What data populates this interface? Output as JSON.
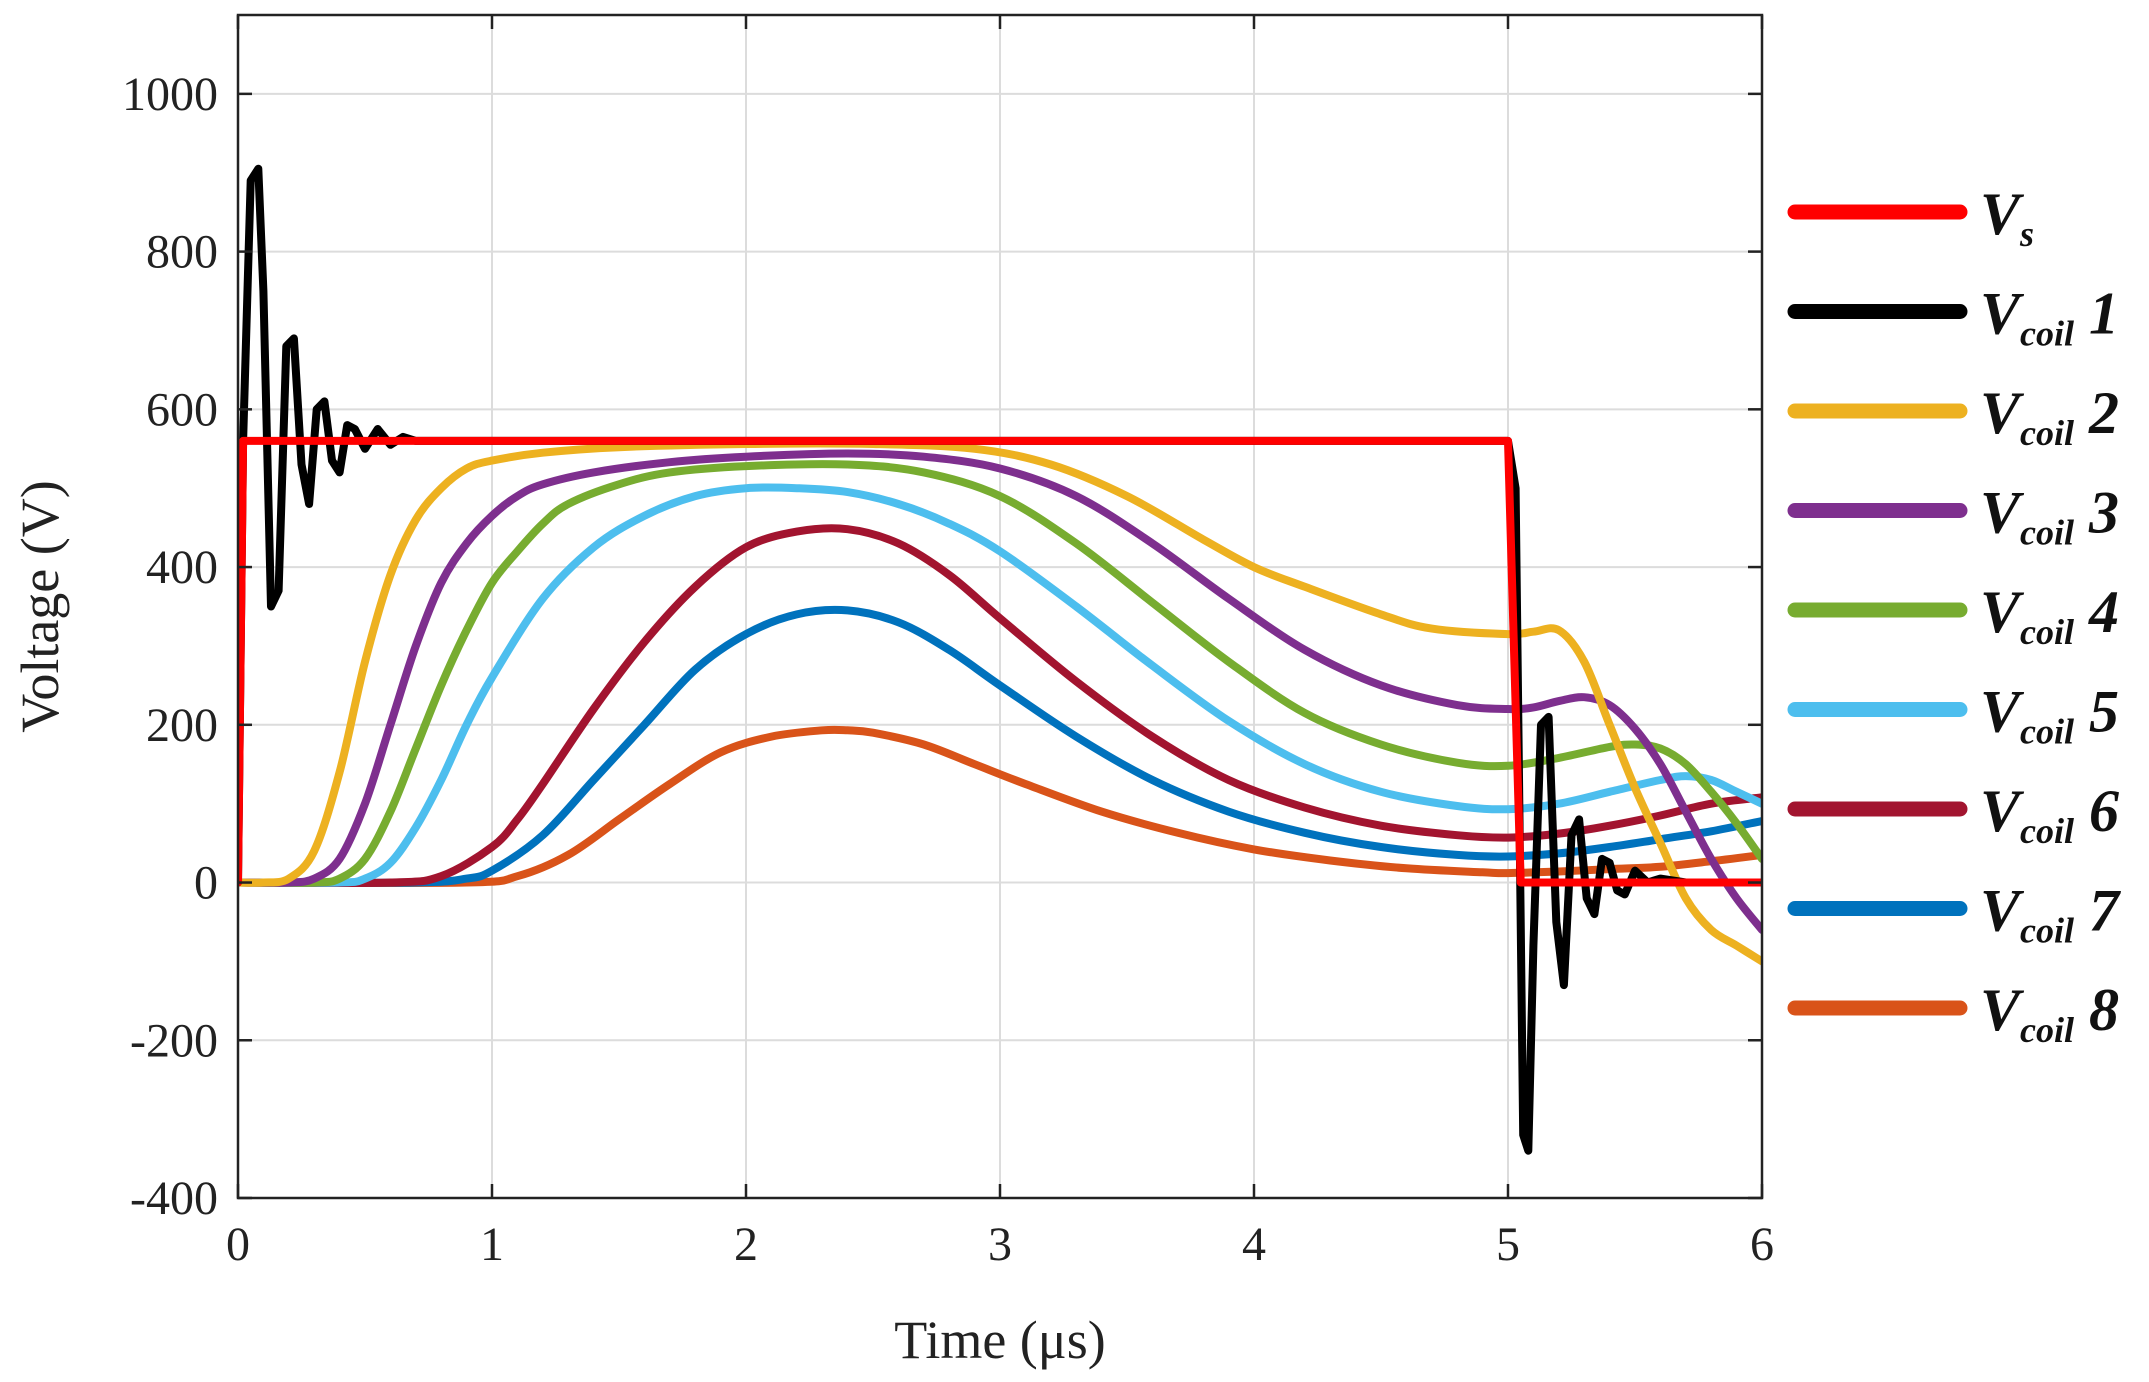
{
  "chart_data": {
    "type": "line",
    "xlabel": "Time (μs)",
    "ylabel": "Voltage (V)",
    "xlim": [
      0,
      6
    ],
    "ylim": [
      -400,
      1100
    ],
    "xticks": [
      0,
      1,
      2,
      3,
      4,
      5,
      6
    ],
    "yticks": [
      -400,
      -200,
      0,
      200,
      400,
      600,
      800,
      1000
    ],
    "xtick_labels": [
      "0",
      "1",
      "2",
      "3",
      "4",
      "5",
      "6"
    ],
    "ytick_labels": [
      "-400",
      "-200",
      "0",
      "200",
      "400",
      "600",
      "800",
      "1000"
    ],
    "grid": true,
    "legend_position": "outside-right",
    "series": [
      {
        "name": "Vs",
        "main": "V",
        "sub": "s",
        "num": "",
        "color": "#ff0000",
        "x": [
          0,
          0.02,
          5.0,
          5.05,
          5.1,
          6.0
        ],
        "y": [
          0,
          560,
          560,
          0,
          0,
          0
        ]
      },
      {
        "name": "Vcoil 1",
        "main": "V",
        "sub": "coil",
        "num": " 1",
        "color": "#000000",
        "x": [
          0,
          0.02,
          0.05,
          0.08,
          0.1,
          0.13,
          0.16,
          0.19,
          0.22,
          0.25,
          0.28,
          0.31,
          0.34,
          0.37,
          0.4,
          0.43,
          0.46,
          0.5,
          0.55,
          0.6,
          0.65,
          0.7,
          0.8,
          1.0,
          2.0,
          3.0,
          4.0,
          5.0,
          5.03,
          5.06,
          5.08,
          5.1,
          5.13,
          5.16,
          5.19,
          5.22,
          5.25,
          5.28,
          5.31,
          5.34,
          5.37,
          5.4,
          5.43,
          5.46,
          5.5,
          5.55,
          5.6,
          5.7,
          5.8,
          6.0
        ],
        "y": [
          0,
          560,
          890,
          905,
          750,
          350,
          370,
          680,
          690,
          530,
          480,
          600,
          610,
          535,
          520,
          580,
          575,
          550,
          575,
          555,
          565,
          560,
          560,
          560,
          560,
          560,
          560,
          560,
          500,
          -320,
          -340,
          -80,
          200,
          210,
          -50,
          -130,
          60,
          80,
          -20,
          -40,
          30,
          25,
          -10,
          -15,
          15,
          0,
          5,
          0,
          0,
          0
        ]
      },
      {
        "name": "Vcoil 2",
        "main": "V",
        "sub": "coil",
        "num": " 2",
        "color": "#edb120",
        "x": [
          0,
          0.1,
          0.2,
          0.3,
          0.4,
          0.5,
          0.6,
          0.7,
          0.8,
          0.9,
          1.0,
          1.2,
          1.5,
          2.0,
          2.5,
          2.9,
          3.2,
          3.5,
          3.8,
          4.0,
          4.2,
          4.5,
          4.7,
          5.0,
          5.1,
          5.2,
          5.3,
          5.4,
          5.5,
          5.6,
          5.7,
          5.8,
          5.9,
          6.0
        ],
        "y": [
          0,
          0,
          5,
          40,
          140,
          280,
          390,
          460,
          500,
          525,
          535,
          545,
          552,
          556,
          556,
          550,
          530,
          490,
          435,
          400,
          375,
          340,
          322,
          315,
          318,
          320,
          280,
          200,
          120,
          50,
          -20,
          -60,
          -80,
          -100
        ]
      },
      {
        "name": "Vcoil 3",
        "main": "V",
        "sub": "coil",
        "num": " 3",
        "color": "#7e2f8e",
        "x": [
          0,
          0.2,
          0.3,
          0.4,
          0.5,
          0.6,
          0.7,
          0.8,
          0.9,
          1.0,
          1.1,
          1.2,
          1.4,
          1.7,
          2.0,
          2.4,
          2.7,
          3.0,
          3.3,
          3.6,
          3.9,
          4.2,
          4.5,
          4.8,
          5.0,
          5.1,
          5.2,
          5.3,
          5.4,
          5.5,
          5.6,
          5.7,
          5.8,
          5.9,
          6.0
        ],
        "y": [
          0,
          0,
          5,
          30,
          100,
          200,
          300,
          380,
          430,
          465,
          490,
          505,
          520,
          533,
          540,
          544,
          540,
          525,
          490,
          430,
          360,
          295,
          250,
          225,
          220,
          222,
          230,
          235,
          225,
          195,
          150,
          90,
          30,
          -20,
          -60
        ]
      },
      {
        "name": "Vcoil 4",
        "main": "V",
        "sub": "coil",
        "num": " 4",
        "color": "#77ac30",
        "x": [
          0,
          0.3,
          0.4,
          0.5,
          0.6,
          0.7,
          0.8,
          0.9,
          1.0,
          1.1,
          1.2,
          1.3,
          1.5,
          1.7,
          2.0,
          2.4,
          2.7,
          3.0,
          3.3,
          3.6,
          3.9,
          4.2,
          4.5,
          4.8,
          5.0,
          5.2,
          5.4,
          5.5,
          5.6,
          5.7,
          5.8,
          5.9,
          6.0
        ],
        "y": [
          0,
          0,
          5,
          30,
          90,
          170,
          250,
          320,
          380,
          420,
          455,
          480,
          505,
          520,
          528,
          530,
          520,
          490,
          430,
          355,
          280,
          215,
          175,
          152,
          148,
          158,
          172,
          175,
          170,
          150,
          115,
          75,
          30
        ]
      },
      {
        "name": "Vcoil 5",
        "main": "V",
        "sub": "coil",
        "num": " 5",
        "color": "#4dbeee",
        "x": [
          0,
          0.4,
          0.5,
          0.6,
          0.7,
          0.8,
          0.9,
          1.0,
          1.2,
          1.4,
          1.6,
          1.8,
          2.0,
          2.2,
          2.4,
          2.6,
          2.8,
          3.0,
          3.3,
          3.6,
          3.9,
          4.2,
          4.5,
          4.8,
          5.0,
          5.2,
          5.4,
          5.6,
          5.7,
          5.8,
          5.9,
          6.0
        ],
        "y": [
          0,
          0,
          5,
          25,
          70,
          130,
          200,
          260,
          360,
          425,
          465,
          490,
          500,
          500,
          495,
          480,
          455,
          420,
          350,
          275,
          205,
          150,
          115,
          97,
          93,
          100,
          115,
          130,
          135,
          130,
          115,
          100
        ]
      },
      {
        "name": "Vcoil 6",
        "main": "V",
        "sub": "coil",
        "num": " 6",
        "color": "#a2142f",
        "x": [
          0,
          0.6,
          0.8,
          1.0,
          1.1,
          1.2,
          1.4,
          1.6,
          1.8,
          2.0,
          2.2,
          2.4,
          2.6,
          2.8,
          3.0,
          3.3,
          3.6,
          3.9,
          4.2,
          4.5,
          4.8,
          5.0,
          5.2,
          5.4,
          5.6,
          5.8,
          6.0
        ],
        "y": [
          0,
          0,
          8,
          45,
          80,
          125,
          220,
          305,
          375,
          425,
          445,
          448,
          430,
          390,
          335,
          255,
          185,
          130,
          95,
          72,
          60,
          57,
          62,
          72,
          85,
          100,
          108
        ]
      },
      {
        "name": "Vcoil 7",
        "main": "V",
        "sub": "coil",
        "num": " 7",
        "color": "#0072bd",
        "x": [
          0,
          0.7,
          0.9,
          1.0,
          1.2,
          1.4,
          1.6,
          1.8,
          2.0,
          2.2,
          2.4,
          2.6,
          2.8,
          3.0,
          3.3,
          3.6,
          3.9,
          4.2,
          4.5,
          4.8,
          5.0,
          5.2,
          5.4,
          5.6,
          5.8,
          6.0
        ],
        "y": [
          0,
          0,
          5,
          15,
          60,
          130,
          200,
          270,
          315,
          340,
          345,
          330,
          295,
          250,
          185,
          130,
          90,
          63,
          45,
          35,
          33,
          37,
          45,
          55,
          65,
          78
        ]
      },
      {
        "name": "Vcoil 8",
        "main": "V",
        "sub": "coil",
        "num": " 8",
        "color": "#d95319",
        "x": [
          0,
          0.9,
          1.1,
          1.3,
          1.5,
          1.7,
          1.9,
          2.1,
          2.3,
          2.4,
          2.5,
          2.7,
          2.9,
          3.1,
          3.4,
          3.7,
          4.0,
          4.3,
          4.6,
          4.9,
          5.0,
          5.2,
          5.4,
          5.6,
          5.8,
          6.0
        ],
        "y": [
          0,
          0,
          8,
          35,
          80,
          125,
          165,
          185,
          193,
          193,
          190,
          175,
          150,
          125,
          90,
          63,
          42,
          28,
          18,
          13,
          12,
          14,
          17,
          20,
          27,
          35
        ]
      }
    ]
  }
}
